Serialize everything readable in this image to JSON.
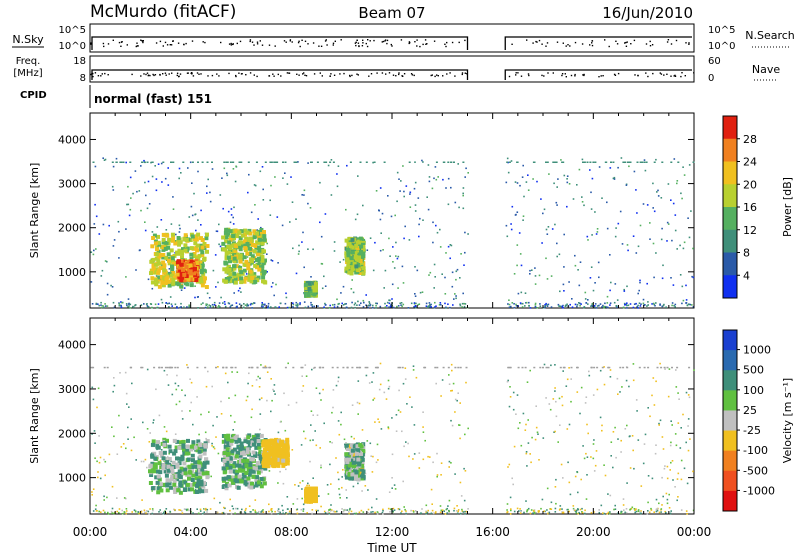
{
  "header": {
    "station": "McMurdo (fitACF)",
    "beam": "Beam 07",
    "date": "16/Jun/2010"
  },
  "top_panels": {
    "nsky_label": "N.Sky",
    "nsky_ticks": [
      "10^5",
      "10^0"
    ],
    "nsearch_label": "N.Search",
    "nsearch_ticks": [
      "10^5",
      "10^0"
    ],
    "freq_label_1": "Freq.",
    "freq_label_2": "[MHz]",
    "freq_ticks": [
      "18",
      "8"
    ],
    "nave_label": "Nave",
    "nave_ticks": [
      "60",
      "0"
    ],
    "cpid_label": "CPID",
    "cpid_value": "normal (fast) 151"
  },
  "chart_data": [
    {
      "type": "heatmap",
      "title": "",
      "xlabel": "Time UT",
      "ylabel": "Slant Range [km]",
      "x_ticks": [
        "00:00",
        "04:00",
        "08:00",
        "12:00",
        "16:00",
        "20:00",
        "00:00"
      ],
      "y_ticks": [
        1000,
        2000,
        3000,
        4000
      ],
      "ylim": [
        180,
        4600
      ],
      "data_gap_hours": [
        15.0,
        16.5
      ],
      "colorbar": {
        "label": "Power [dB]",
        "ticks": [
          4,
          8,
          12,
          16,
          20,
          24,
          28
        ],
        "colors": [
          "#1030f0",
          "#2a5aa8",
          "#3f8f7a",
          "#55b060",
          "#b8d030",
          "#f0c020",
          "#f08020",
          "#e02010"
        ]
      },
      "echo_regions": [
        {
          "t0": 2.3,
          "t1": 4.6,
          "r0": 700,
          "r1": 1900,
          "value": 18
        },
        {
          "t0": 5.2,
          "t1": 6.9,
          "r0": 800,
          "r1": 2000,
          "value": 17
        },
        {
          "t0": 3.4,
          "t1": 4.2,
          "r0": 850,
          "r1": 1300,
          "value": 27
        },
        {
          "t0": 10.1,
          "t1": 10.8,
          "r0": 1000,
          "r1": 1800,
          "value": 16
        },
        {
          "t0": 8.5,
          "t1": 8.9,
          "r0": 500,
          "r1": 800,
          "value": 14
        }
      ]
    },
    {
      "type": "heatmap",
      "title": "",
      "xlabel": "Time UT",
      "ylabel": "Slant Range [km]",
      "x_ticks": [
        "00:00",
        "04:00",
        "08:00",
        "12:00",
        "16:00",
        "20:00",
        "00:00"
      ],
      "y_ticks": [
        1000,
        2000,
        3000,
        4000
      ],
      "ylim": [
        180,
        4600
      ],
      "data_gap_hours": [
        15.0,
        16.5
      ],
      "colorbar": {
        "label": "Velocity [m s⁻¹]",
        "ticks": [
          1000,
          500,
          100,
          25,
          -25,
          -100,
          -500,
          -1000
        ],
        "colors": [
          "#1a40d0",
          "#2a6ab0",
          "#3f8f7a",
          "#60c040",
          "#c0c0c0",
          "#f0c020",
          "#f08020",
          "#f05020",
          "#e01010"
        ]
      },
      "echo_regions": [
        {
          "t0": 2.3,
          "t1": 4.6,
          "r0": 700,
          "r1": 1900,
          "value": 40
        },
        {
          "t0": 5.2,
          "t1": 6.9,
          "r0": 800,
          "r1": 2000,
          "value": 60
        },
        {
          "t0": 6.8,
          "t1": 7.8,
          "r0": 1300,
          "r1": 1900,
          "value": -150
        },
        {
          "t0": 10.1,
          "t1": 10.8,
          "r0": 1000,
          "r1": 1800,
          "value": 30
        },
        {
          "t0": 8.5,
          "t1": 8.9,
          "r0": 500,
          "r1": 800,
          "value": -200
        }
      ]
    }
  ]
}
